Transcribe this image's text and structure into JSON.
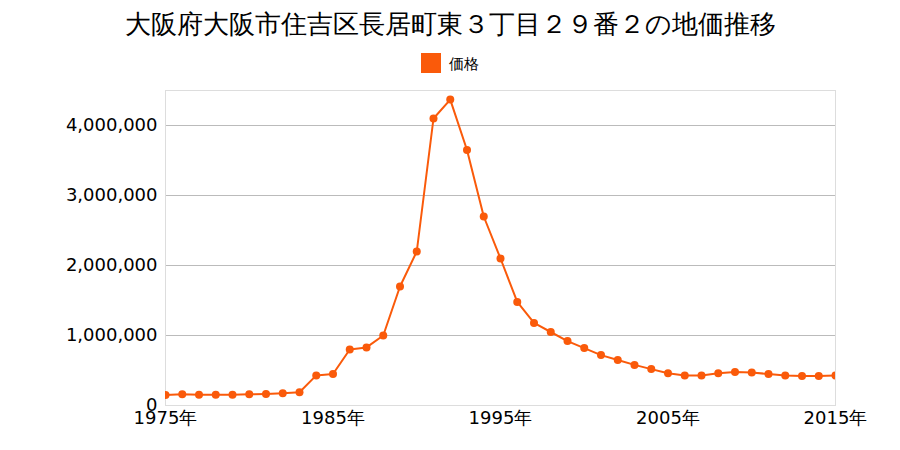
{
  "chart_data": {
    "type": "line",
    "title": "大阪府大阪市住吉区長居町東３丁目２９番２の地価推移",
    "x": [
      1975,
      1976,
      1977,
      1978,
      1979,
      1980,
      1981,
      1982,
      1983,
      1984,
      1985,
      1986,
      1987,
      1988,
      1989,
      1990,
      1991,
      1992,
      1993,
      1994,
      1995,
      1996,
      1997,
      1998,
      1999,
      2000,
      2001,
      2002,
      2003,
      2004,
      2005,
      2006,
      2007,
      2008,
      2009,
      2010,
      2011,
      2012,
      2013,
      2014,
      2015
    ],
    "series": [
      {
        "name": "価格",
        "color": "#fa5a0a",
        "marker": "circle",
        "values": [
          150000,
          160000,
          155000,
          155000,
          155000,
          160000,
          165000,
          175000,
          190000,
          430000,
          450000,
          800000,
          830000,
          1000000,
          1700000,
          2200000,
          4100000,
          4370000,
          3650000,
          2700000,
          2100000,
          1480000,
          1180000,
          1050000,
          920000,
          820000,
          720000,
          650000,
          580000,
          520000,
          460000,
          430000,
          430000,
          460000,
          480000,
          470000,
          450000,
          430000,
          420000,
          420000,
          430000
        ]
      }
    ],
    "xlim": [
      1975,
      2015
    ],
    "xticks": [
      {
        "value": 1975,
        "label": "1975年"
      },
      {
        "value": 1985,
        "label": "1985年"
      },
      {
        "value": 1995,
        "label": "1995年"
      },
      {
        "value": 2005,
        "label": "2005年"
      },
      {
        "value": 2015,
        "label": "2015年"
      }
    ],
    "ylim": [
      0,
      4500000
    ],
    "yticks": [
      0,
      {
        "value": 1000000,
        "label": "1,000,000"
      },
      {
        "value": 2000000,
        "label": "2,000,000"
      },
      {
        "value": 3000000,
        "label": "3,000,000"
      },
      {
        "value": 4000000,
        "label": "4,000,000"
      }
    ],
    "grid": true,
    "legend": "top"
  }
}
